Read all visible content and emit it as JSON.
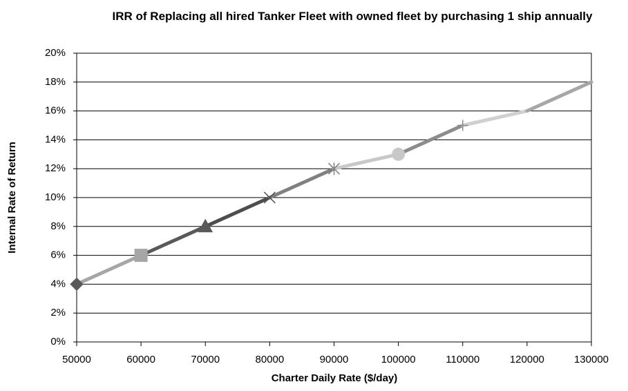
{
  "chart_data": {
    "type": "line",
    "title": "IRR of Replacing all hired Tanker Fleet with owned fleet by purchasing 1 ship annually",
    "x_label": "Charter Daily Rate ($/day)",
    "y_label": "Internal Rate of Return",
    "x": [
      50000,
      60000,
      70000,
      80000,
      90000,
      100000,
      110000,
      120000,
      130000
    ],
    "values": [
      4,
      6,
      8,
      10,
      12,
      13,
      15,
      16,
      18
    ],
    "colors": [
      "#595959",
      "#a6a6a6",
      "#595959",
      "#4d4d4d",
      "#808080",
      "#c8c8c8",
      "#8c8c8c",
      "#d0d0d0",
      "#a6a6a6"
    ],
    "markers": [
      "diamond",
      "square",
      "triangle",
      "x",
      "star",
      "circle",
      "plus",
      "none",
      "none"
    ],
    "xlim": [
      50000,
      130000
    ],
    "xticks": [
      50000,
      60000,
      70000,
      80000,
      90000,
      100000,
      110000,
      120000,
      130000
    ],
    "ylim": [
      0,
      20
    ],
    "yticks": [
      {
        "value": 0,
        "label": "0%"
      },
      {
        "value": 2,
        "label": "2%"
      },
      {
        "value": 4,
        "label": "4%"
      },
      {
        "value": 6,
        "label": "6%"
      },
      {
        "value": 8,
        "label": "8%"
      },
      {
        "value": 10,
        "label": "10%"
      },
      {
        "value": 12,
        "label": "12%"
      },
      {
        "value": 14,
        "label": "14%"
      },
      {
        "value": 16,
        "label": "16%"
      },
      {
        "value": 18,
        "label": "18%"
      },
      {
        "value": 20,
        "label": "20%"
      }
    ],
    "grid": true
  }
}
